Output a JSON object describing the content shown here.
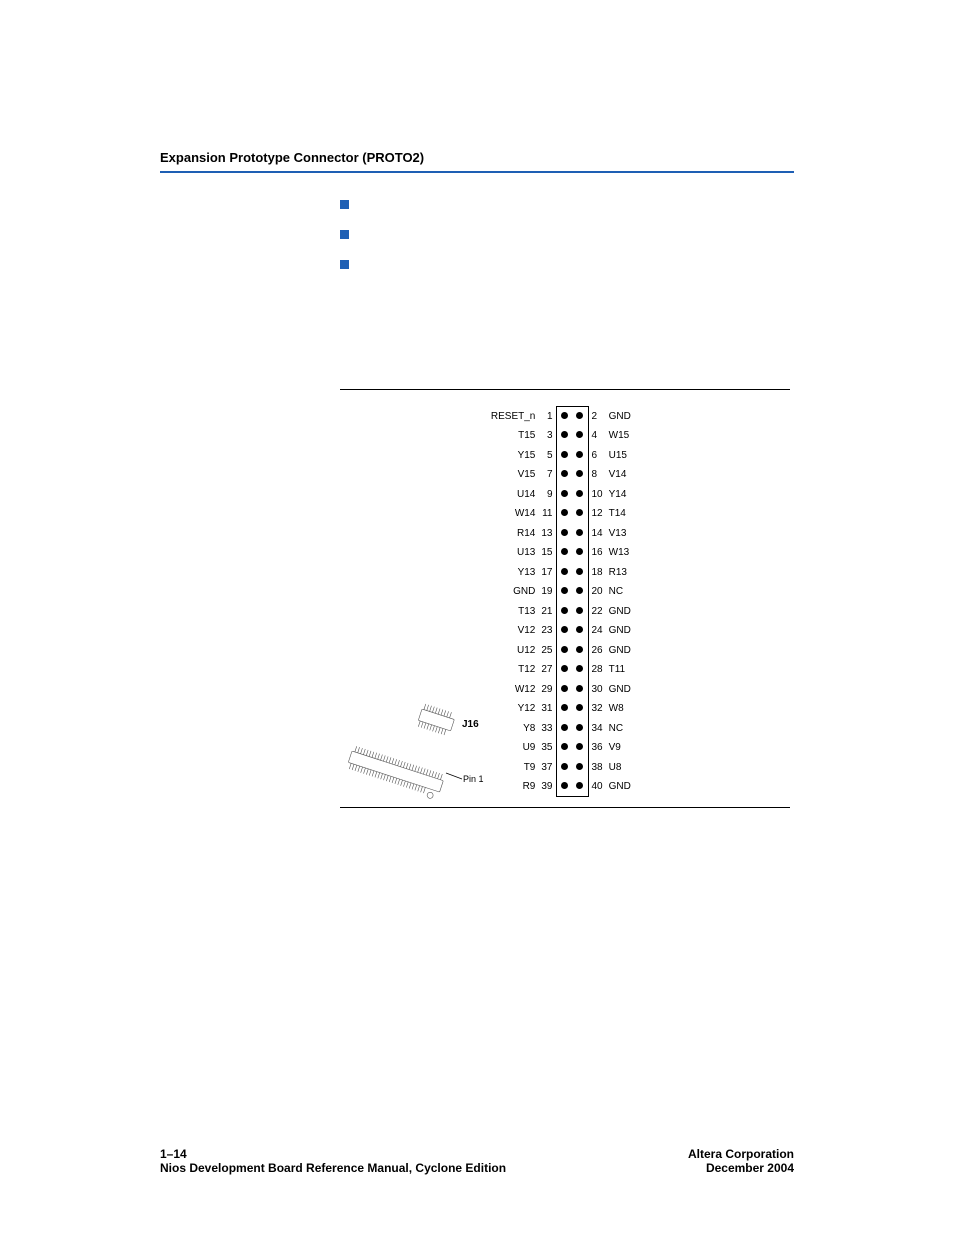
{
  "header": {
    "section_title": "Expansion Prototype Connector (PROTO2)"
  },
  "bullets": [
    {
      "text": ""
    },
    {
      "text": ""
    },
    {
      "text": ""
    }
  ],
  "figure": {
    "connector_label": "J16",
    "pin1_label": "Pin 1",
    "rows": [
      {
        "l_label": "RESET_n",
        "l_num": "1",
        "r_num": "2",
        "r_label": "GND"
      },
      {
        "l_label": "T15",
        "l_num": "3",
        "r_num": "4",
        "r_label": "W15"
      },
      {
        "l_label": "Y15",
        "l_num": "5",
        "r_num": "6",
        "r_label": "U15"
      },
      {
        "l_label": "V15",
        "l_num": "7",
        "r_num": "8",
        "r_label": "V14"
      },
      {
        "l_label": "U14",
        "l_num": "9",
        "r_num": "10",
        "r_label": "Y14"
      },
      {
        "l_label": "W14",
        "l_num": "11",
        "r_num": "12",
        "r_label": "T14"
      },
      {
        "l_label": "R14",
        "l_num": "13",
        "r_num": "14",
        "r_label": "V13"
      },
      {
        "l_label": "U13",
        "l_num": "15",
        "r_num": "16",
        "r_label": "W13"
      },
      {
        "l_label": "Y13",
        "l_num": "17",
        "r_num": "18",
        "r_label": "R13"
      },
      {
        "l_label": "GND",
        "l_num": "19",
        "r_num": "20",
        "r_label": "NC"
      },
      {
        "l_label": "T13",
        "l_num": "21",
        "r_num": "22",
        "r_label": "GND"
      },
      {
        "l_label": "V12",
        "l_num": "23",
        "r_num": "24",
        "r_label": "GND"
      },
      {
        "l_label": "U12",
        "l_num": "25",
        "r_num": "26",
        "r_label": "GND"
      },
      {
        "l_label": "T12",
        "l_num": "27",
        "r_num": "28",
        "r_label": "T11"
      },
      {
        "l_label": "W12",
        "l_num": "29",
        "r_num": "30",
        "r_label": "GND"
      },
      {
        "l_label": "Y12",
        "l_num": "31",
        "r_num": "32",
        "r_label": "W8"
      },
      {
        "l_label": "Y8",
        "l_num": "33",
        "r_num": "34",
        "r_label": "NC"
      },
      {
        "l_label": "U9",
        "l_num": "35",
        "r_num": "36",
        "r_label": "V9"
      },
      {
        "l_label": "T9",
        "l_num": "37",
        "r_num": "38",
        "r_label": "U8"
      },
      {
        "l_label": "R9",
        "l_num": "39",
        "r_num": "40",
        "r_label": "GND"
      }
    ]
  },
  "footer": {
    "page_num": "1–14",
    "manual": "Nios Development Board Reference Manual, Cyclone Edition",
    "company": "Altera Corporation",
    "date": "December 2004"
  },
  "style": {
    "accent_color": "#1e5fb4",
    "dot_color": "#000000",
    "rule_color": "#000000",
    "font_small": 10,
    "font_body": 13,
    "row_height": 19.5
  }
}
